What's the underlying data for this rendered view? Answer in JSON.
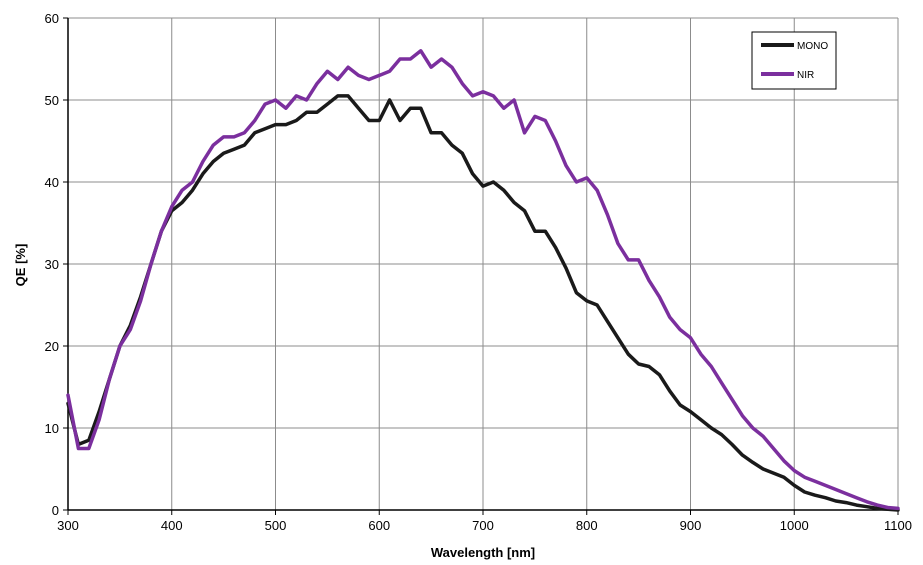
{
  "chart_data": {
    "type": "line",
    "title": "",
    "xlabel": "Wavelength [nm]",
    "ylabel": "QE [%]",
    "xlim": [
      300,
      1100
    ],
    "ylim": [
      0,
      60
    ],
    "xticks": [
      300,
      400,
      500,
      600,
      700,
      800,
      900,
      1000,
      1100
    ],
    "yticks": [
      0,
      10,
      20,
      30,
      40,
      50,
      60
    ],
    "grid": true,
    "legend_position": "top-right",
    "series": [
      {
        "name": "MONO",
        "color": "#1a1a1a",
        "x": [
          300,
          310,
          320,
          330,
          340,
          350,
          360,
          370,
          380,
          390,
          400,
          410,
          420,
          430,
          440,
          450,
          460,
          470,
          480,
          490,
          500,
          510,
          520,
          530,
          540,
          550,
          560,
          570,
          580,
          590,
          600,
          610,
          620,
          630,
          640,
          650,
          660,
          670,
          680,
          690,
          700,
          710,
          720,
          730,
          740,
          750,
          760,
          770,
          780,
          790,
          800,
          810,
          820,
          830,
          840,
          850,
          860,
          870,
          880,
          890,
          900,
          910,
          920,
          930,
          940,
          950,
          960,
          970,
          980,
          990,
          1000,
          1010,
          1020,
          1030,
          1040,
          1050,
          1060,
          1070,
          1080,
          1090,
          1100
        ],
        "y": [
          13,
          8,
          8.5,
          12,
          16,
          20,
          22.5,
          26,
          30,
          34,
          36.5,
          37.5,
          39,
          41,
          42.5,
          43.5,
          44,
          44.5,
          46,
          46.5,
          47,
          47,
          47.5,
          48.5,
          48.5,
          49.5,
          50.5,
          50.5,
          49,
          47.5,
          47.5,
          50,
          47.5,
          49,
          49,
          46,
          46,
          44.5,
          43.5,
          41,
          39.5,
          40,
          39,
          37.5,
          36.5,
          34,
          34,
          32,
          29.5,
          26.5,
          25.5,
          25,
          23,
          21,
          19,
          17.8,
          17.5,
          16.5,
          14.5,
          12.8,
          12,
          11,
          10,
          9.2,
          8,
          6.7,
          5.8,
          5,
          4.5,
          4,
          3,
          2.2,
          1.8,
          1.5,
          1.1,
          0.9,
          0.6,
          0.4,
          0.2,
          0.1,
          0
        ]
      },
      {
        "name": "NIR",
        "color": "#7b2f9e",
        "x": [
          300,
          310,
          320,
          330,
          340,
          350,
          360,
          370,
          380,
          390,
          400,
          410,
          420,
          430,
          440,
          450,
          460,
          470,
          480,
          490,
          500,
          510,
          520,
          530,
          540,
          550,
          560,
          570,
          580,
          590,
          600,
          610,
          620,
          630,
          640,
          650,
          660,
          670,
          680,
          690,
          700,
          710,
          720,
          730,
          740,
          750,
          760,
          770,
          780,
          790,
          800,
          810,
          820,
          830,
          840,
          850,
          860,
          870,
          880,
          890,
          900,
          910,
          920,
          930,
          940,
          950,
          960,
          970,
          980,
          990,
          1000,
          1010,
          1020,
          1030,
          1040,
          1050,
          1060,
          1070,
          1080,
          1090,
          1100
        ],
        "y": [
          14,
          7.5,
          7.5,
          11,
          16,
          20,
          22,
          25.5,
          30,
          34,
          37,
          39,
          40,
          42.5,
          44.5,
          45.5,
          45.5,
          46,
          47.5,
          49.5,
          50,
          49,
          50.5,
          50,
          52,
          53.5,
          52.5,
          54,
          53,
          52.5,
          53,
          53.5,
          55,
          55,
          56,
          54,
          55,
          54,
          52,
          50.5,
          51,
          50.5,
          49,
          50,
          46,
          48,
          47.5,
          45,
          42,
          40,
          40.5,
          39,
          36,
          32.5,
          30.5,
          30.5,
          28,
          26,
          23.5,
          22,
          21,
          19,
          17.5,
          15.5,
          13.5,
          11.5,
          10,
          9,
          7.5,
          6,
          4.8,
          4,
          3.5,
          3,
          2.5,
          2,
          1.5,
          1,
          0.6,
          0.3,
          0.2
        ]
      }
    ]
  }
}
